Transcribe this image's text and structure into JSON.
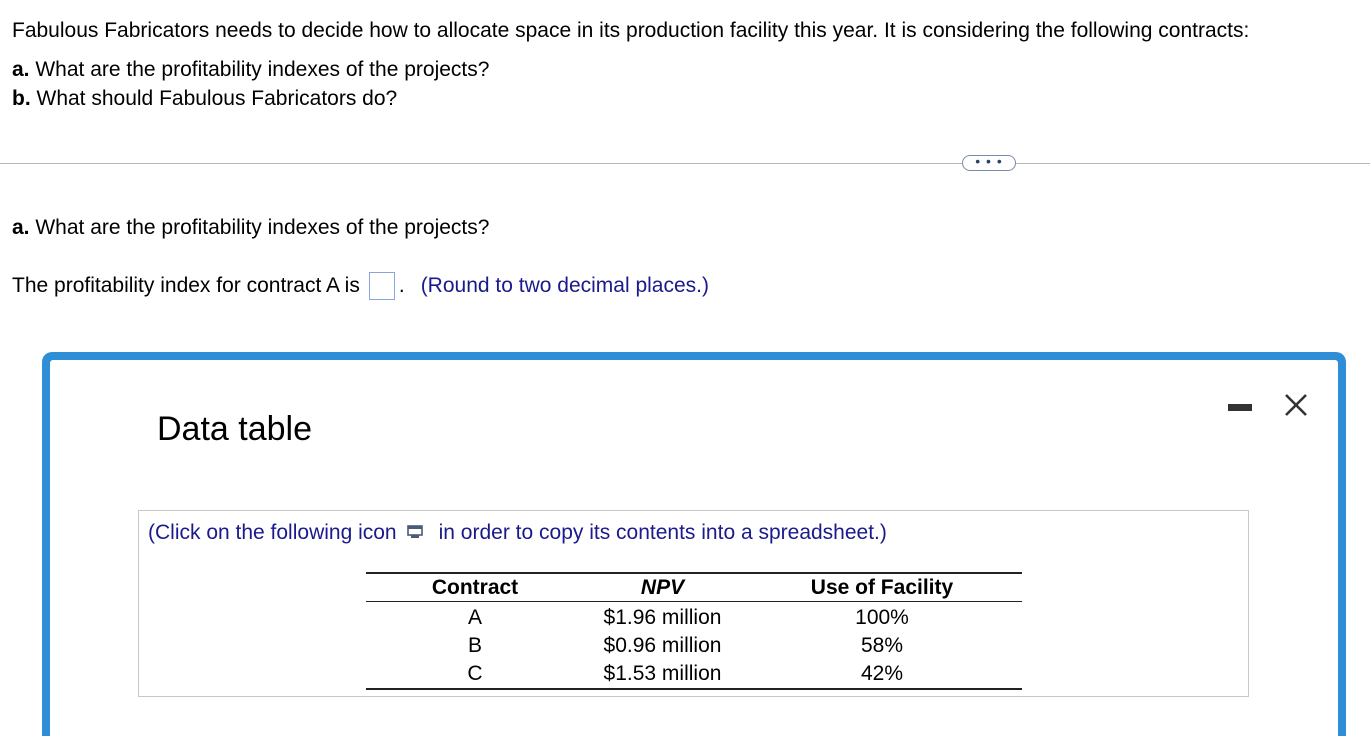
{
  "question": {
    "intro": "Fabulous Fabricators needs to decide how to allocate space in its production facility this year. It is considering the following contracts:",
    "part_a_label": "a.",
    "part_a_text": " What are the profitability indexes of the projects?",
    "part_b_label": "b.",
    "part_b_text": " What should Fabulous Fabricators do?"
  },
  "more_button": "• • •",
  "answer": {
    "part_label": "a.",
    "part_text": " What are the profitability indexes of the projects?",
    "prompt": "The profitability index for contract A is",
    "value": "",
    "suffix": ".",
    "hint": "(Round to two decimal places.)"
  },
  "modal": {
    "title": "Data table",
    "copy_note_before": "(Click on the following icon",
    "copy_note_after": "in order to copy its contents into a spreadsheet.)",
    "table": {
      "headers": [
        "Contract",
        "NPV",
        "Use of Facility"
      ],
      "rows": [
        [
          "A",
          "$1.96 million",
          "100%"
        ],
        [
          "B",
          "$0.96 million",
          "58%"
        ],
        [
          "C",
          "$1.53 million",
          "42%"
        ]
      ]
    }
  },
  "colors": {
    "modal_border": "#2f8fd6",
    "hint_text": "#1a1a8c"
  }
}
